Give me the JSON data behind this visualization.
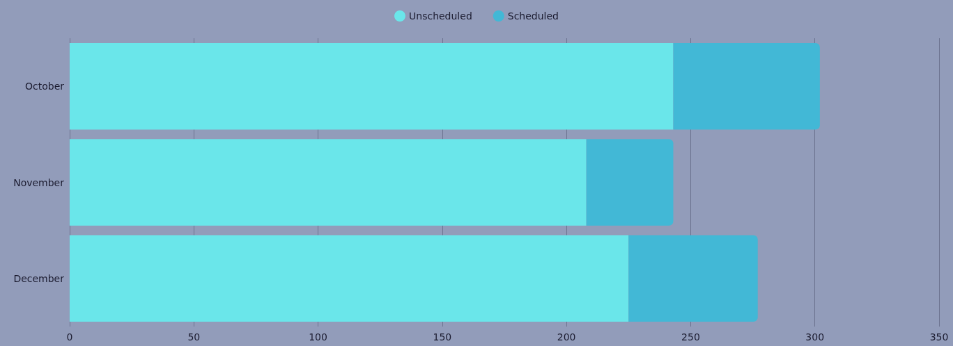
{
  "chart_data": {
    "type": "bar",
    "orientation": "horizontal",
    "stacked": true,
    "categories": [
      "October",
      "November",
      "December"
    ],
    "series": [
      {
        "name": "Unscheduled",
        "color": "#6ae6ea",
        "values": [
          243,
          208,
          225
        ]
      },
      {
        "name": "Scheduled",
        "color": "#42b8d6",
        "values": [
          59,
          35,
          52
        ]
      }
    ],
    "xlim": [
      0,
      350
    ],
    "xticks": [
      0,
      50,
      100,
      150,
      200,
      250,
      300,
      350
    ],
    "grid": "x",
    "legend": "top"
  }
}
